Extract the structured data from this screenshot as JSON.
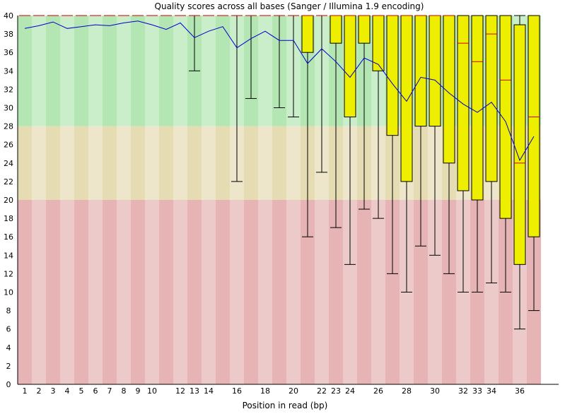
{
  "chart_data": {
    "type": "box",
    "title": "Quality scores across all bases (Sanger / Illumina 1.9 encoding)",
    "xlabel": "Position in read (bp)",
    "ylabel": "",
    "ylim": [
      0,
      40
    ],
    "y_ticks": [
      0,
      2,
      4,
      6,
      8,
      10,
      12,
      14,
      16,
      18,
      20,
      22,
      24,
      26,
      28,
      30,
      32,
      34,
      36,
      38,
      40
    ],
    "x_tick_labels": [
      "1",
      "2",
      "3",
      "4",
      "5",
      "6",
      "7",
      "8",
      "9",
      "10",
      "12",
      "13",
      "14",
      "16",
      "18",
      "20",
      "22",
      "23",
      "24",
      "26",
      "28",
      "30",
      "32",
      "33",
      "34",
      "36"
    ],
    "x_tick_columns": [
      0,
      1,
      2,
      3,
      4,
      5,
      6,
      7,
      8,
      9,
      11,
      12,
      13,
      15,
      17,
      19,
      21,
      22,
      23,
      25,
      27,
      29,
      31,
      32,
      33,
      35
    ],
    "bands": [
      {
        "from": 28,
        "to": 40,
        "color": "#b4e6b4"
      },
      {
        "from": 20,
        "to": 28,
        "color": "#e6dcb4"
      },
      {
        "from": 0,
        "to": 20,
        "color": "#e6b4b4"
      }
    ],
    "box_color": "#eeee00",
    "median_color": "#cc0000",
    "mean_color": "#0000cc",
    "boxes": [
      {
        "low": 40,
        "q1": 40,
        "median": 40,
        "q3": 40,
        "high": 40
      },
      {
        "low": 40,
        "q1": 40,
        "median": 40,
        "q3": 40,
        "high": 40
      },
      {
        "low": 40,
        "q1": 40,
        "median": 40,
        "q3": 40,
        "high": 40
      },
      {
        "low": 40,
        "q1": 40,
        "median": 40,
        "q3": 40,
        "high": 40
      },
      {
        "low": 40,
        "q1": 40,
        "median": 40,
        "q3": 40,
        "high": 40
      },
      {
        "low": 40,
        "q1": 40,
        "median": 40,
        "q3": 40,
        "high": 40
      },
      {
        "low": 40,
        "q1": 40,
        "median": 40,
        "q3": 40,
        "high": 40
      },
      {
        "low": 40,
        "q1": 40,
        "median": 40,
        "q3": 40,
        "high": 40
      },
      {
        "low": 40,
        "q1": 40,
        "median": 40,
        "q3": 40,
        "high": 40
      },
      {
        "low": 40,
        "q1": 40,
        "median": 40,
        "q3": 40,
        "high": 40
      },
      {
        "low": 40,
        "q1": 40,
        "median": 40,
        "q3": 40,
        "high": 40
      },
      {
        "low": 40,
        "q1": 40,
        "median": 40,
        "q3": 40,
        "high": 40
      },
      {
        "low": 34,
        "q1": 40,
        "median": 40,
        "q3": 40,
        "high": 40
      },
      {
        "low": 40,
        "q1": 40,
        "median": 40,
        "q3": 40,
        "high": 40
      },
      {
        "low": 40,
        "q1": 40,
        "median": 40,
        "q3": 40,
        "high": 40
      },
      {
        "low": 22,
        "q1": 40,
        "median": 40,
        "q3": 40,
        "high": 40
      },
      {
        "low": 31,
        "q1": 40,
        "median": 40,
        "q3": 40,
        "high": 40
      },
      {
        "low": 40,
        "q1": 40,
        "median": 40,
        "q3": 40,
        "high": 40
      },
      {
        "low": 30,
        "q1": 40,
        "median": 40,
        "q3": 40,
        "high": 40
      },
      {
        "low": 29,
        "q1": 40,
        "median": 40,
        "q3": 40,
        "high": 40
      },
      {
        "low": 16,
        "q1": 36,
        "median": 40,
        "q3": 40,
        "high": 40
      },
      {
        "low": 23,
        "q1": 40,
        "median": 40,
        "q3": 40,
        "high": 40
      },
      {
        "low": 17,
        "q1": 37,
        "median": 40,
        "q3": 40,
        "high": 40
      },
      {
        "low": 13,
        "q1": 29,
        "median": 40,
        "q3": 40,
        "high": 40
      },
      {
        "low": 19,
        "q1": 37,
        "median": 40,
        "q3": 40,
        "high": 40
      },
      {
        "low": 18,
        "q1": 34,
        "median": 40,
        "q3": 40,
        "high": 40
      },
      {
        "low": 12,
        "q1": 27,
        "median": 40,
        "q3": 40,
        "high": 40
      },
      {
        "low": 10,
        "q1": 22,
        "median": 40,
        "q3": 40,
        "high": 40
      },
      {
        "low": 15,
        "q1": 28,
        "median": 40,
        "q3": 40,
        "high": 40
      },
      {
        "low": 14,
        "q1": 28,
        "median": 40,
        "q3": 40,
        "high": 40
      },
      {
        "low": 12,
        "q1": 24,
        "median": 40,
        "q3": 40,
        "high": 40
      },
      {
        "low": 10,
        "q1": 21,
        "median": 37,
        "q3": 40,
        "high": 40
      },
      {
        "low": 10,
        "q1": 20,
        "median": 35,
        "q3": 40,
        "high": 40
      },
      {
        "low": 11,
        "q1": 22,
        "median": 38,
        "q3": 40,
        "high": 40
      },
      {
        "low": 10,
        "q1": 18,
        "median": 33,
        "q3": 40,
        "high": 40
      },
      {
        "low": 6,
        "q1": 13,
        "median": 24,
        "q3": 39,
        "high": 40
      },
      {
        "low": 8,
        "q1": 16,
        "median": 29,
        "q3": 40,
        "high": 40
      }
    ],
    "mean": [
      38.6,
      38.9,
      39.3,
      38.6,
      38.8,
      39.0,
      38.9,
      39.2,
      39.4,
      39.0,
      38.5,
      39.2,
      37.6,
      38.3,
      38.8,
      36.5,
      37.5,
      38.3,
      37.3,
      37.3,
      34.8,
      36.4,
      35.0,
      33.3,
      35.4,
      34.7,
      32.6,
      30.7,
      33.3,
      33.0,
      31.6,
      30.4,
      29.5,
      30.6,
      28.5,
      24.3,
      26.9
    ]
  }
}
